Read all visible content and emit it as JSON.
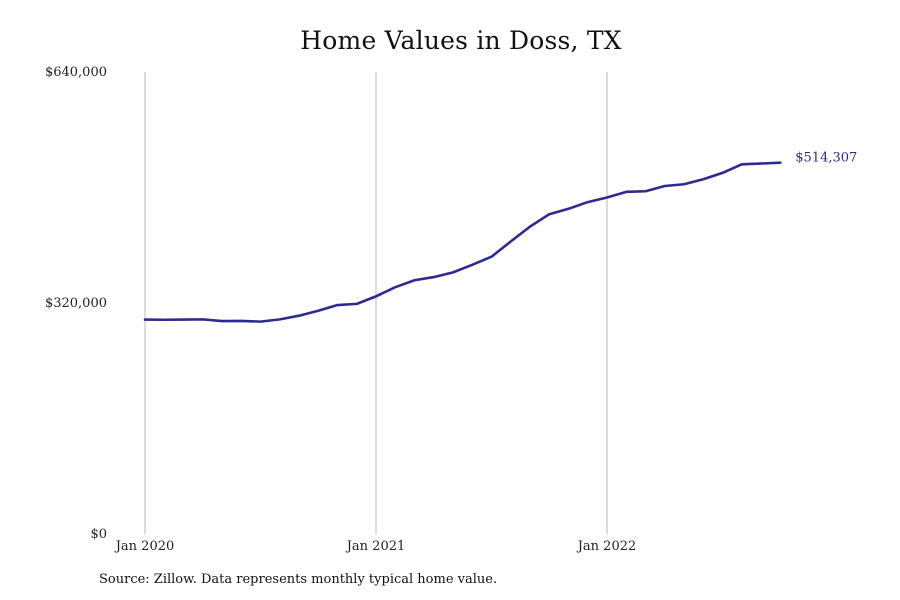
{
  "chart_data": {
    "type": "line",
    "title": "Home Values in Doss, TX",
    "xlabel": "",
    "ylabel": "",
    "x_ticks": [
      "Jan 2020",
      "Jan 2021",
      "Jan 2022"
    ],
    "y_ticks": [
      "$0",
      "$320,000",
      "$640,000"
    ],
    "ylim": [
      0,
      640000
    ],
    "x": [
      "2020-01",
      "2020-02",
      "2020-03",
      "2020-04",
      "2020-05",
      "2020-06",
      "2020-07",
      "2020-08",
      "2020-09",
      "2020-10",
      "2020-11",
      "2020-12",
      "2021-01",
      "2021-02",
      "2021-03",
      "2021-04",
      "2021-05",
      "2021-06",
      "2021-07",
      "2021-08",
      "2021-09",
      "2021-10",
      "2021-11",
      "2021-12",
      "2022-01",
      "2022-02",
      "2022-03",
      "2022-04",
      "2022-05",
      "2022-06",
      "2022-07",
      "2022-08",
      "2022-09",
      "2022-10"
    ],
    "series": [
      {
        "color": "#2e2a8f",
        "values": [
          297000,
          296800,
          297000,
          297300,
          295000,
          295200,
          294200,
          297300,
          302400,
          309300,
          317200,
          318800,
          329200,
          341900,
          351500,
          355900,
          362400,
          372900,
          384100,
          405200,
          425800,
          443000,
          450500,
          459800,
          466100,
          474000,
          474800,
          482100,
          484500,
          491400,
          500200,
          512100,
          514307,
          514307
        ]
      }
    ],
    "end_label": "$514,307",
    "grid": "vertical lines at year ticks"
  },
  "footer": {
    "source": "Source: Zillow. Data represents monthly typical home value."
  }
}
